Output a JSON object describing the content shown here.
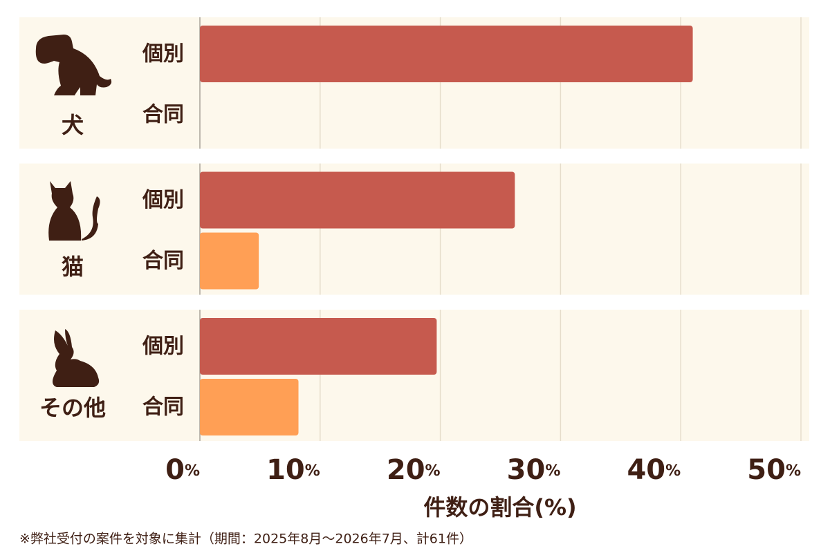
{
  "chart_data": {
    "type": "bar",
    "orientation": "horizontal",
    "categories": [
      "犬",
      "猫",
      "その他"
    ],
    "series": [
      {
        "name": "個別",
        "color": "#c65a4e",
        "values": [
          41.0,
          26.2,
          19.7
        ]
      },
      {
        "name": "合同",
        "color": "#ff9f55",
        "values": [
          0,
          4.9,
          8.2
        ]
      }
    ],
    "xlim": [
      0,
      50
    ],
    "xticks": [
      {
        "value": 0,
        "label": "0%"
      },
      {
        "value": 10,
        "label": "10%"
      },
      {
        "value": 20,
        "label": "20%"
      },
      {
        "value": 30,
        "label": "30%"
      },
      {
        "value": 40,
        "label": "40%"
      },
      {
        "value": 50,
        "label": "50%"
      }
    ],
    "xlabel": "件数の割合(%)",
    "grid": true,
    "note": "※弊社受付の案件を対象に集計（期間：2025年8月〜2026年7月、計61件）"
  }
}
